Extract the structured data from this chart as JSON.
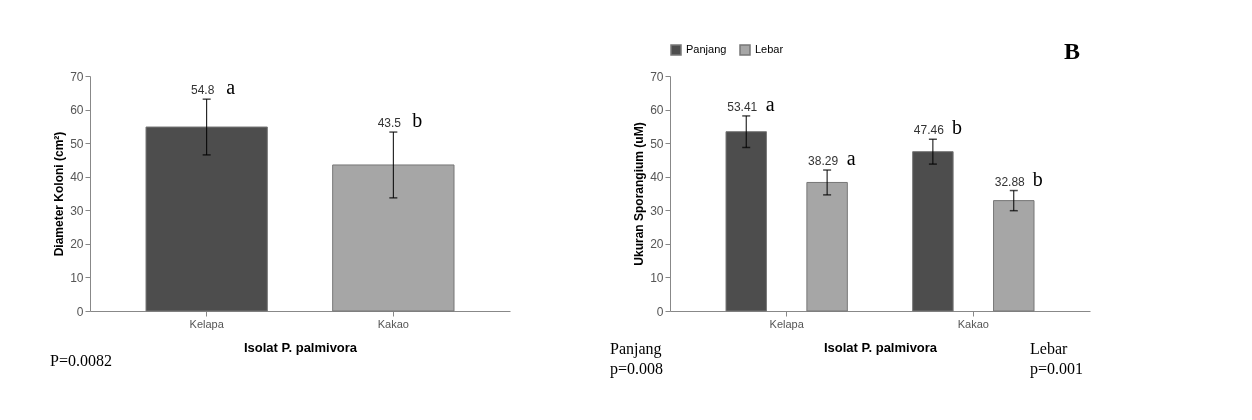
{
  "chart_data": [
    {
      "type": "bar",
      "categories": [
        "Kelapa",
        "Kakao"
      ],
      "values": [
        54.8,
        43.5
      ],
      "colors": [
        "#4d4d4d",
        "#a6a6a6"
      ],
      "errors": [
        8.3,
        9.8
      ],
      "data_labels": true,
      "ylim": [
        0,
        70
      ],
      "yticks": [
        0,
        10,
        20,
        30,
        40,
        50,
        60,
        70
      ],
      "xlabel": "Isolat P. palmivora",
      "ylabel": "Diameter Koloni (cm²)",
      "grid": false,
      "legend": false,
      "annotations": [
        "a",
        "b",
        "P=0.0082"
      ]
    },
    {
      "type": "bar",
      "categories": [
        "Kelapa",
        "Kakao"
      ],
      "series": [
        {
          "name": "Panjang",
          "color": "#4d4d4d",
          "values": [
            53.41,
            47.46
          ],
          "errors": [
            4.7,
            3.7
          ]
        },
        {
          "name": "Lebar",
          "color": "#a6a6a6",
          "values": [
            38.29,
            32.88
          ],
          "errors": [
            3.7,
            3.0
          ]
        }
      ],
      "data_labels": true,
      "ylim": [
        0,
        70
      ],
      "yticks": [
        0,
        10,
        20,
        30,
        40,
        50,
        60,
        70
      ],
      "xlabel": "Isolat P. palmivora",
      "ylabel": "Ukuran Sporangium (uM)",
      "grid": false,
      "legend": "top",
      "annotations": [
        "a",
        "a",
        "b",
        "b",
        "B",
        "Panjang\np=0.008",
        "Lebar\np=0.001"
      ]
    }
  ]
}
